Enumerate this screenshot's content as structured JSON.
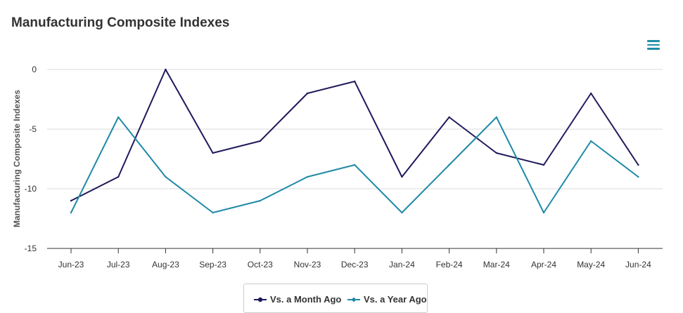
{
  "title": "Manufacturing Composite Indexes",
  "menu_icon": "hamburger-menu-icon",
  "colors": {
    "month": "#1f1a5c",
    "year": "#1f8aa6",
    "grid": "#d8d8d8",
    "axis": "#333333"
  },
  "chart_data": {
    "type": "line",
    "title": "Manufacturing Composite Indexes",
    "ylabel": "Manufacturing Composite Indexes",
    "xlabel": "",
    "ylim": [
      -15,
      0
    ],
    "yticks": [
      0,
      -5,
      -10,
      -15
    ],
    "categories": [
      "Jun-23",
      "Jul-23",
      "Aug-23",
      "Sep-23",
      "Oct-23",
      "Nov-23",
      "Dec-23",
      "Jan-24",
      "Feb-24",
      "Mar-24",
      "Apr-24",
      "May-24",
      "Jun-24"
    ],
    "series": [
      {
        "name": "Vs. a Month Ago",
        "color": "#1f1a5c",
        "values": [
          -11,
          -9,
          0,
          -7,
          -6,
          -2,
          -1,
          -9,
          -4,
          -7,
          -8,
          -2,
          -8
        ]
      },
      {
        "name": "Vs. a Year Ago",
        "color": "#1f8aa6",
        "values": [
          -12,
          -4,
          -9,
          -12,
          -11,
          -9,
          -8,
          -12,
          -8,
          -4,
          -12,
          -6,
          -9
        ]
      }
    ],
    "grid": true,
    "legend": "bottom-center"
  }
}
